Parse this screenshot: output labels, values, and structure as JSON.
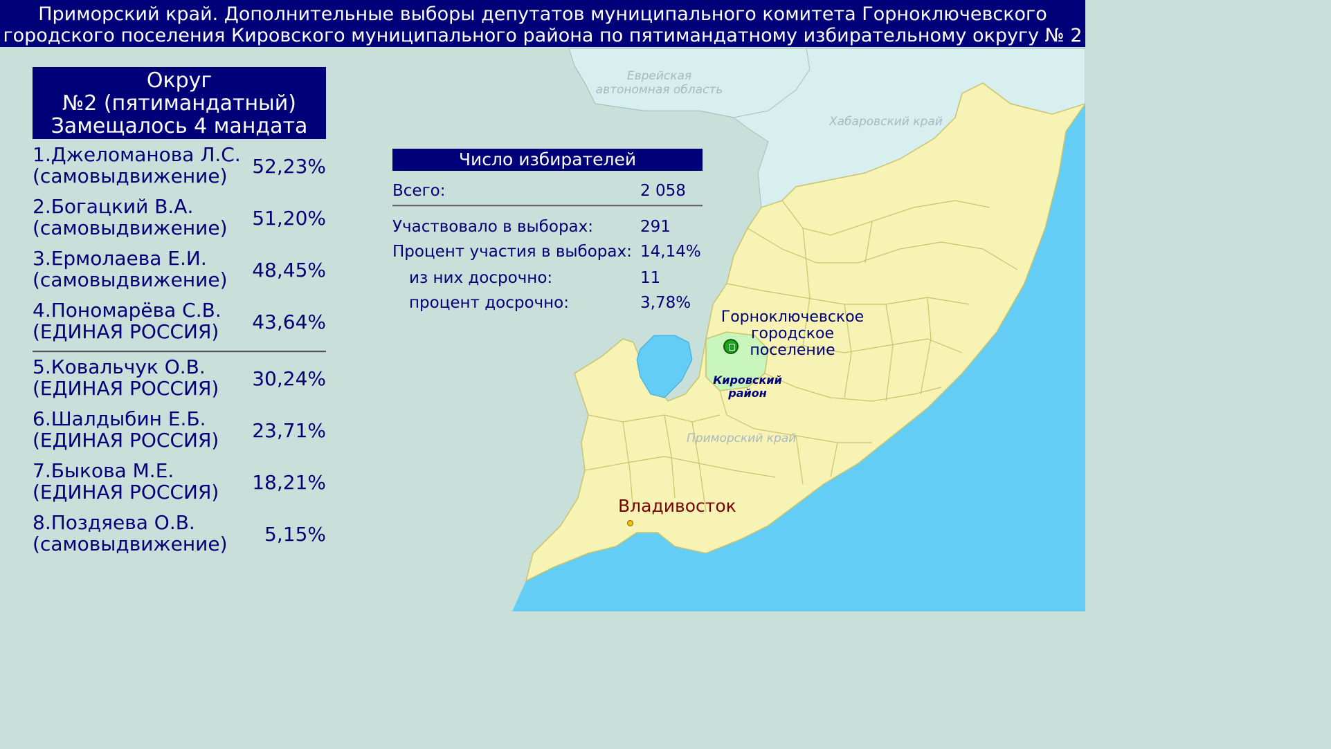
{
  "title": {
    "line1": "Приморский край. Дополнительные выборы депутатов муниципального комитета Горноключевского",
    "line2": "городского поселения Кировского муниципального района по пятимандатному избирательному округу № 2"
  },
  "okrug": {
    "line1": "Округ",
    "line2": "№2 (пятимандатный)",
    "line3": "Замещалось 4 мандата"
  },
  "candidates": [
    {
      "name": "1.Джеломанова Л.С.",
      "party": "(самовыдвижение)",
      "percent": "52,23%"
    },
    {
      "name": "2.Богацкий В.А.",
      "party": "(самовыдвижение)",
      "percent": "51,20%"
    },
    {
      "name": "3.Ермолаева Е.И.",
      "party": "(самовыдвижение)",
      "percent": "48,45%"
    },
    {
      "name": "4.Пономарёва С.В.",
      "party": "(ЕДИНАЯ РОССИЯ)",
      "percent": "43,64%"
    },
    {
      "name": "5.Ковальчук О.В.",
      "party": "(ЕДИНАЯ РОССИЯ)",
      "percent": "30,24%"
    },
    {
      "name": "6.Шалдыбин Е.Б.",
      "party": "(ЕДИНАЯ РОССИЯ)",
      "percent": "23,71%"
    },
    {
      "name": "7.Быкова М.Е.",
      "party": "(ЕДИНАЯ РОССИЯ)",
      "percent": "18,21%"
    },
    {
      "name": "8.Поздяева О.В.",
      "party": "(самовыдвижение)",
      "percent": "5,15%"
    }
  ],
  "voters": {
    "header": "Число избирателей",
    "total_label": "Всего:",
    "total_value": "2 058",
    "participated_label": "Участвовало в выборах:",
    "participated_value": "291",
    "turnout_label": "Процент участия в выборах:",
    "turnout_value": "14,14%",
    "early_label": "из них досрочно:",
    "early_value": "11",
    "early_pct_label": "процент досрочно:",
    "early_pct_value": "3,78%"
  },
  "map": {
    "labels": {
      "jewish_ao": "Еврейская автономная область",
      "khabarovsk": "Хабаровский край",
      "primorsky": "Приморский край",
      "gorn": "Горноключевское городское поселение",
      "kirovsky": "Кировский район",
      "vladivostok": "Владивосток"
    },
    "colors": {
      "background_land": "#c8e0d9",
      "neighbor_regions": "#d8eff0",
      "primorsky_fill": "#f6f3b5",
      "highlight_district": "#c8f5bc",
      "sea": "#63cdf5",
      "header": "#000078"
    },
    "icons": [
      "settlement-marker-icon",
      "city-marker-icon"
    ]
  }
}
